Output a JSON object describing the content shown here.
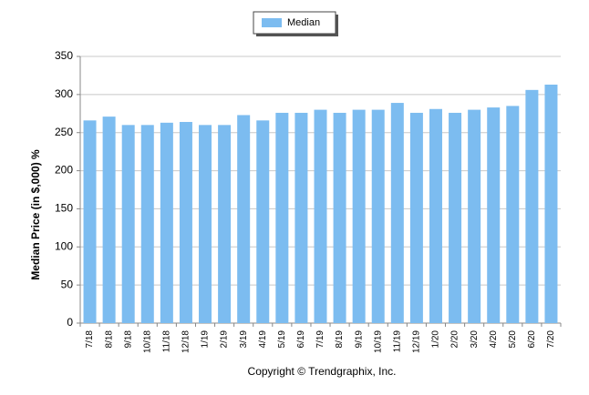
{
  "chart_data": {
    "type": "bar",
    "ylabel": "Median Price (in $,000) %",
    "footer": "Copyright © Trendgraphix, Inc.",
    "categories": [
      "7/18",
      "8/18",
      "9/18",
      "10/18",
      "11/18",
      "12/18",
      "1/19",
      "2/19",
      "3/19",
      "4/19",
      "5/19",
      "6/19",
      "7/19",
      "8/19",
      "9/19",
      "10/19",
      "11/19",
      "12/19",
      "1/20",
      "2/20",
      "3/20",
      "4/20",
      "5/20",
      "6/20",
      "7/20"
    ],
    "series": [
      {
        "name": "Median",
        "color": "#7cbcf0",
        "values": [
          266,
          271,
          260,
          260,
          263,
          264,
          260,
          260,
          273,
          266,
          276,
          276,
          280,
          276,
          280,
          280,
          289,
          276,
          281,
          276,
          280,
          283,
          285,
          306,
          313
        ]
      }
    ],
    "ylim": [
      0,
      350
    ],
    "yticks": [
      0,
      50,
      100,
      150,
      200,
      250,
      300,
      350
    ],
    "grid": true,
    "legend": "top"
  }
}
